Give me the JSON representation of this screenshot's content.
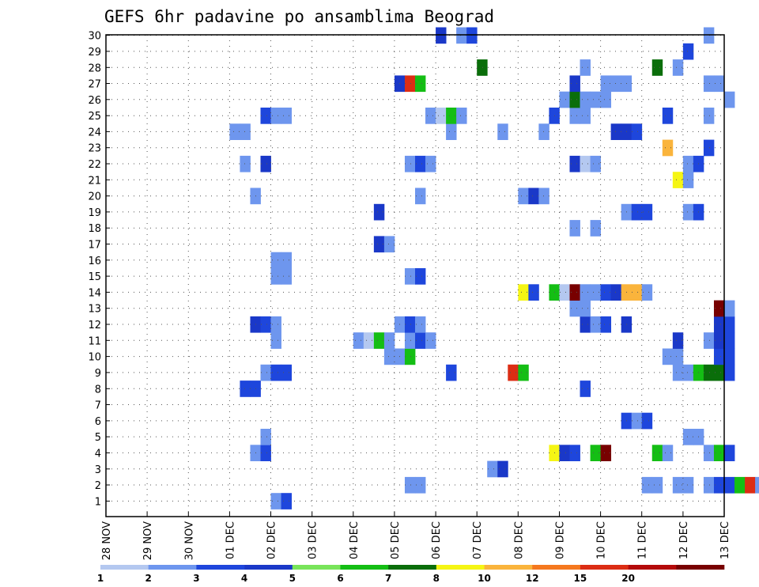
{
  "chart_data": {
    "type": "heatmap",
    "title": "GEFS 6hr padavine po ansamblima Beograd",
    "y_ticks": [
      "1",
      "2",
      "3",
      "4",
      "5",
      "6",
      "7",
      "8",
      "9",
      "10",
      "11",
      "12",
      "13",
      "14",
      "15",
      "16",
      "17",
      "18",
      "19",
      "20",
      "21",
      "22",
      "23",
      "24",
      "25",
      "26",
      "27",
      "28",
      "29",
      "30"
    ],
    "x_ticks": [
      "28 NOV",
      "29 NOV",
      "30 NOV",
      "01 DEC",
      "02 DEC",
      "03 DEC",
      "04 DEC",
      "05 DEC",
      "06 DEC",
      "07 DEC",
      "08 DEC",
      "09 DEC",
      "10 DEC",
      "11 DEC",
      "12 DEC",
      "13 DEC"
    ],
    "x_unit": "6-hour steps from 28 NOV 00z",
    "grid": true,
    "colorbar": {
      "levels": [
        "1",
        "2",
        "3",
        "4",
        "5",
        "6",
        "7",
        "8",
        "10",
        "12",
        "15",
        "20"
      ],
      "colors": [
        "#b4c8f0",
        "#6e96ee",
        "#1e46dc",
        "#1a38c8",
        "#78e45a",
        "#14be14",
        "#0a6e0a",
        "#f5f514",
        "#fab43c",
        "#f5781e",
        "#dc2d14",
        "#b40a0a",
        "#780000"
      ]
    },
    "cells": [
      [
        16,
        0,
        1
      ],
      [
        17,
        0,
        2
      ],
      [
        69,
        0,
        1
      ],
      [
        29,
        1,
        1
      ],
      [
        30,
        1,
        1
      ],
      [
        52,
        1,
        1
      ],
      [
        53,
        1,
        1
      ],
      [
        55,
        1,
        1
      ],
      [
        56,
        1,
        1
      ],
      [
        58,
        1,
        1
      ],
      [
        59,
        1,
        2
      ],
      [
        60,
        1,
        2
      ],
      [
        61,
        1,
        5
      ],
      [
        62,
        1,
        10
      ],
      [
        63,
        1,
        1
      ],
      [
        64,
        1,
        1
      ],
      [
        37,
        2,
        1
      ],
      [
        38,
        2,
        3
      ],
      [
        14,
        3,
        1
      ],
      [
        15,
        3,
        2
      ],
      [
        43,
        3,
        7
      ],
      [
        44,
        3,
        3
      ],
      [
        45,
        3,
        2
      ],
      [
        47,
        3,
        5
      ],
      [
        48,
        3,
        12
      ],
      [
        53,
        3,
        5
      ],
      [
        54,
        3,
        1
      ],
      [
        58,
        3,
        1
      ],
      [
        59,
        3,
        5
      ],
      [
        60,
        3,
        2
      ],
      [
        15,
        4,
        1
      ],
      [
        56,
        4,
        1
      ],
      [
        57,
        4,
        1
      ],
      [
        50,
        5,
        2
      ],
      [
        51,
        5,
        1
      ],
      [
        52,
        5,
        2
      ],
      [
        13,
        7,
        2
      ],
      [
        14,
        7,
        2
      ],
      [
        46,
        7,
        2
      ],
      [
        15,
        8,
        1
      ],
      [
        16,
        8,
        2
      ],
      [
        17,
        8,
        2
      ],
      [
        33,
        8,
        2
      ],
      [
        39,
        8,
        10
      ],
      [
        40,
        8,
        5
      ],
      [
        55,
        8,
        1
      ],
      [
        56,
        8,
        1
      ],
      [
        57,
        8,
        5
      ],
      [
        58,
        8,
        6
      ],
      [
        59,
        8,
        6
      ],
      [
        60,
        8,
        2
      ],
      [
        27,
        9,
        1
      ],
      [
        28,
        9,
        1
      ],
      [
        29,
        9,
        5
      ],
      [
        54,
        9,
        1
      ],
      [
        55,
        9,
        1
      ],
      [
        59,
        9,
        2
      ],
      [
        60,
        9,
        2
      ],
      [
        16,
        10,
        1
      ],
      [
        24,
        10,
        1
      ],
      [
        25,
        10,
        15
      ],
      [
        26,
        10,
        5
      ],
      [
        27,
        10,
        1
      ],
      [
        29,
        10,
        1
      ],
      [
        30,
        10,
        2
      ],
      [
        31,
        10,
        1
      ],
      [
        55,
        10,
        3
      ],
      [
        58,
        10,
        1
      ],
      [
        59,
        10,
        3
      ],
      [
        60,
        10,
        2
      ],
      [
        14,
        11,
        3
      ],
      [
        15,
        11,
        2
      ],
      [
        16,
        11,
        1
      ],
      [
        28,
        11,
        1
      ],
      [
        29,
        11,
        2
      ],
      [
        30,
        11,
        1
      ],
      [
        46,
        11,
        3
      ],
      [
        47,
        11,
        1
      ],
      [
        48,
        11,
        2
      ],
      [
        50,
        11,
        3
      ],
      [
        59,
        11,
        3
      ],
      [
        60,
        11,
        2
      ],
      [
        45,
        12,
        1
      ],
      [
        46,
        12,
        1
      ],
      [
        59,
        12,
        12
      ],
      [
        60,
        12,
        1
      ],
      [
        40,
        13,
        7
      ],
      [
        41,
        13,
        2
      ],
      [
        43,
        13,
        5
      ],
      [
        44,
        13,
        15
      ],
      [
        45,
        13,
        12
      ],
      [
        46,
        13,
        1
      ],
      [
        47,
        13,
        1
      ],
      [
        48,
        13,
        2
      ],
      [
        49,
        13,
        3
      ],
      [
        50,
        13,
        8
      ],
      [
        51,
        13,
        8
      ],
      [
        52,
        13,
        1
      ],
      [
        16,
        14,
        1
      ],
      [
        17,
        14,
        1
      ],
      [
        29,
        14,
        1
      ],
      [
        30,
        14,
        2
      ],
      [
        16,
        15,
        1
      ],
      [
        17,
        15,
        1
      ],
      [
        26,
        16,
        3
      ],
      [
        27,
        16,
        1
      ],
      [
        45,
        17,
        1
      ],
      [
        47,
        17,
        1
      ],
      [
        26,
        18,
        3
      ],
      [
        50,
        18,
        1
      ],
      [
        51,
        18,
        2
      ],
      [
        52,
        18,
        2
      ],
      [
        56,
        18,
        1
      ],
      [
        57,
        18,
        2
      ],
      [
        14,
        19,
        1
      ],
      [
        30,
        19,
        1
      ],
      [
        40,
        19,
        1
      ],
      [
        41,
        19,
        3
      ],
      [
        42,
        19,
        1
      ],
      [
        55,
        20,
        7
      ],
      [
        56,
        20,
        1
      ],
      [
        13,
        21,
        1
      ],
      [
        15,
        21,
        3
      ],
      [
        29,
        21,
        1
      ],
      [
        30,
        21,
        2
      ],
      [
        31,
        21,
        1
      ],
      [
        45,
        21,
        3
      ],
      [
        46,
        21,
        15
      ],
      [
        47,
        21,
        1
      ],
      [
        56,
        21,
        1
      ],
      [
        57,
        21,
        2
      ],
      [
        54,
        22,
        8
      ],
      [
        58,
        22,
        2
      ],
      [
        12,
        23,
        1
      ],
      [
        13,
        23,
        1
      ],
      [
        33,
        23,
        1
      ],
      [
        38,
        23,
        1
      ],
      [
        42,
        23,
        1
      ],
      [
        49,
        23,
        3
      ],
      [
        50,
        23,
        3
      ],
      [
        51,
        23,
        2
      ],
      [
        15,
        24,
        2
      ],
      [
        16,
        24,
        1
      ],
      [
        17,
        24,
        1
      ],
      [
        31,
        24,
        1
      ],
      [
        32,
        24,
        15
      ],
      [
        33,
        24,
        5
      ],
      [
        34,
        24,
        1
      ],
      [
        43,
        24,
        2
      ],
      [
        45,
        24,
        1
      ],
      [
        46,
        24,
        1
      ],
      [
        54,
        24,
        2
      ],
      [
        58,
        24,
        1
      ],
      [
        44,
        25,
        1
      ],
      [
        45,
        25,
        6
      ],
      [
        46,
        25,
        1
      ],
      [
        47,
        25,
        1
      ],
      [
        48,
        25,
        1
      ],
      [
        60,
        25,
        1
      ],
      [
        28,
        26,
        3
      ],
      [
        29,
        26,
        10
      ],
      [
        30,
        26,
        5
      ],
      [
        45,
        26,
        3
      ],
      [
        48,
        26,
        1
      ],
      [
        49,
        26,
        1
      ],
      [
        50,
        26,
        1
      ],
      [
        58,
        26,
        1
      ],
      [
        59,
        26,
        1
      ],
      [
        36,
        27,
        6
      ],
      [
        46,
        27,
        1
      ],
      [
        53,
        27,
        6
      ],
      [
        55,
        27,
        1
      ],
      [
        56,
        28,
        2
      ],
      [
        32,
        29,
        3
      ],
      [
        34,
        29,
        1
      ],
      [
        35,
        29,
        2
      ],
      [
        58,
        29,
        1
      ]
    ]
  }
}
